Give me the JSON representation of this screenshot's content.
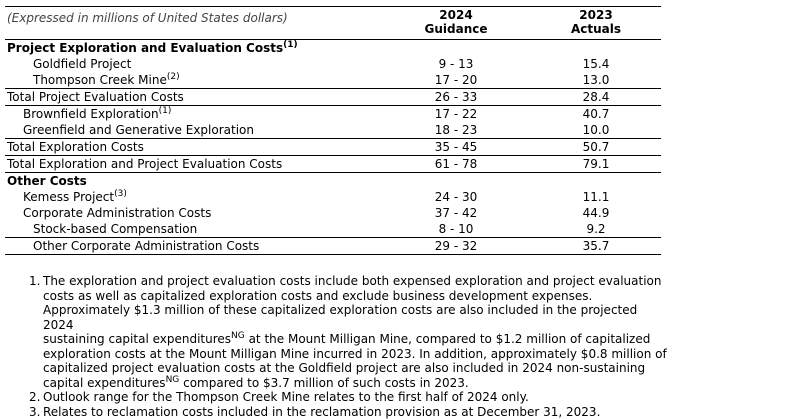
{
  "header": {
    "caption": "(Expressed in millions of United States dollars)",
    "col1_line1": "2024",
    "col1_line2": "Guidance",
    "col2_line1": "2023",
    "col2_line2": "Actuals"
  },
  "rows": {
    "project_section": {
      "label": "Project Exploration and Evaluation Costs",
      "note": "(1)"
    },
    "goldfield": {
      "label": "Goldfield Project",
      "guidance": "9 - 13",
      "actual": "15.4"
    },
    "thompson": {
      "label": "Thompson Creek Mine",
      "note": "(2)",
      "guidance": "17 - 20",
      "actual": "13.0"
    },
    "total_project": {
      "label": "Total Project Evaluation Costs",
      "guidance": "26 - 33",
      "actual": "28.4"
    },
    "brownfield": {
      "label": "Brownfield Exploration",
      "note": "(1)",
      "guidance": "17 - 22",
      "actual": "40.7"
    },
    "greenfield": {
      "label": "Greenfield and Generative Exploration",
      "guidance": "18 - 23",
      "actual": "10.0"
    },
    "total_exploration": {
      "label": "Total Exploration Costs",
      "guidance": "35 - 45",
      "actual": "50.7"
    },
    "total_expl_proj": {
      "label": "Total Exploration and Project Evaluation Costs",
      "guidance": "61 - 78",
      "actual": "79.1"
    },
    "other_section": {
      "label": "Other Costs"
    },
    "kemess": {
      "label": "Kemess Project",
      "note": "(3)",
      "guidance": "24 - 30",
      "actual": "11.1"
    },
    "corp_admin": {
      "label": "Corporate Administration Costs",
      "guidance": "37 - 42",
      "actual": "44.9"
    },
    "stock_comp": {
      "label": "Stock-based Compensation",
      "guidance": "8 - 10",
      "actual": "9.2"
    },
    "other_corp": {
      "label": "Other Corporate Administration Costs",
      "guidance": "29 - 32",
      "actual": "35.7"
    }
  },
  "notes": {
    "n1": {
      "num": "1.",
      "l1": "The exploration and project evaluation costs include both expensed exploration and project evaluation",
      "l2": "costs as well as capitalized exploration costs and exclude business development expenses.",
      "l3": "Approximately $1.3 million of these capitalized exploration costs are also included in the projected 2024",
      "l4a": "sustaining capital expenditures",
      "l4sup": "NG",
      "l4b": " at the Mount Milligan Mine, compared to $1.2 million of capitalized",
      "l5": "exploration costs at the Mount Milligan Mine incurred in 2023. In addition, approximately $0.8 million of",
      "l6": "capitalized project evaluation costs at the Goldfield project are also included in 2024 non-sustaining",
      "l7a": "capital expenditures",
      "l7sup": "NG",
      "l7b": " compared to $3.7 million of such costs in 2023."
    },
    "n2": {
      "num": "2.",
      "text": "Outlook range for the Thompson Creek Mine relates to the first half of 2024 only."
    },
    "n3": {
      "num": "3.",
      "text": "Relates to reclamation costs included in the reclamation provision as at December 31, 2023."
    }
  }
}
